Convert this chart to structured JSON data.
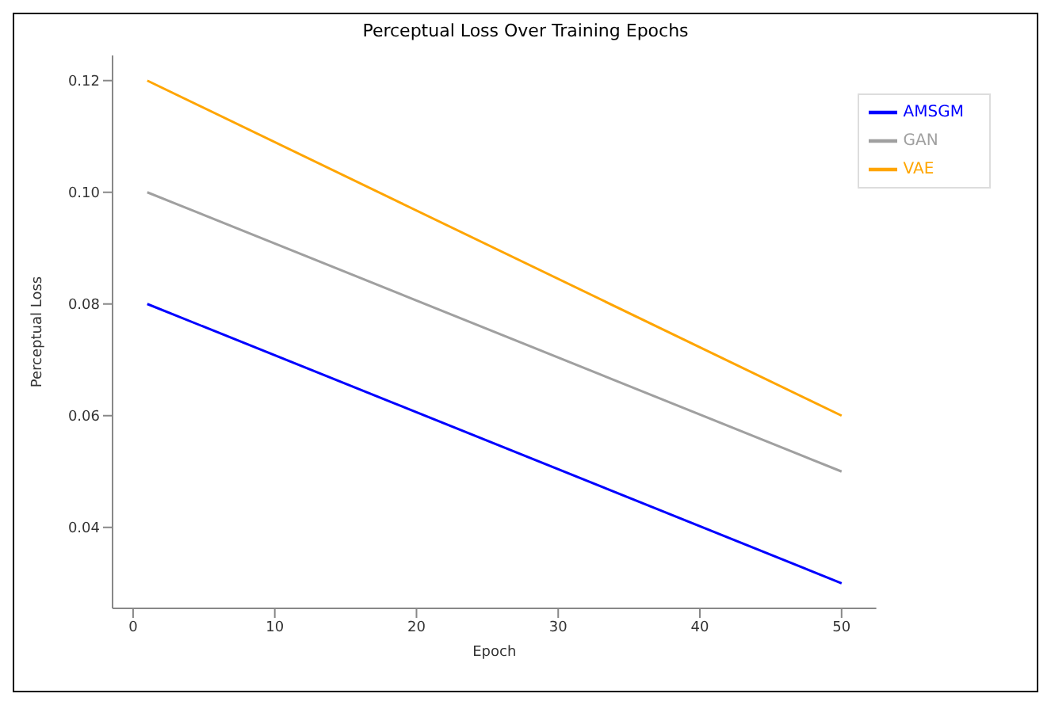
{
  "chart_data": {
    "type": "line",
    "title": "Perceptual Loss Over Training Epochs",
    "xlabel": "Epoch",
    "ylabel": "Perceptual Loss",
    "x": [
      1,
      50
    ],
    "series": [
      {
        "name": "GAN",
        "color": "#a0a0a0",
        "values": [
          0.1,
          0.05
        ]
      },
      {
        "name": "VAE",
        "color": "#ffa500",
        "values": [
          0.12,
          0.06
        ]
      },
      {
        "name": "AMSGM",
        "color": "#0000ff",
        "values": [
          0.08,
          0.03
        ]
      }
    ],
    "xlim": [
      -1.45,
      52.45
    ],
    "xticks": [
      0,
      10,
      20,
      30,
      40,
      50
    ],
    "ylim": [
      0.0255,
      0.1245
    ],
    "yticks": [
      {
        "value": 0.04,
        "label": "0.04"
      },
      {
        "value": 0.06,
        "label": "0.06"
      },
      {
        "value": 0.08,
        "label": "0.08"
      },
      {
        "value": 0.1,
        "label": "0.10"
      },
      {
        "value": 0.12,
        "label": "0.12"
      }
    ],
    "grid": false,
    "legend": "top right",
    "marker": "none",
    "line_style": "solid"
  }
}
